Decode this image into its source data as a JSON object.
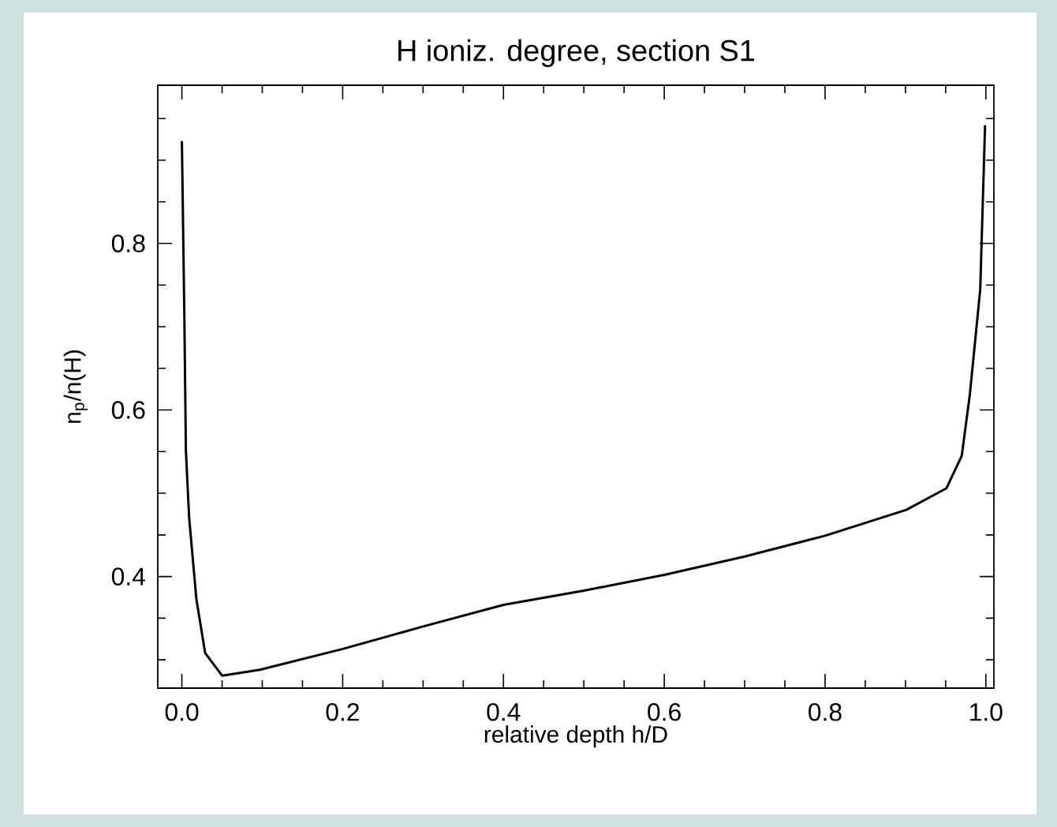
{
  "chart_data": {
    "type": "line",
    "title": "H ioniz. degree, section S1",
    "xlabel": "relative depth h/D",
    "ylabel": "n$_{p}$/n(H)",
    "x": [
      0.0,
      0.003,
      0.005,
      0.009,
      0.018,
      0.029,
      0.05,
      0.097,
      0.2,
      0.3,
      0.4,
      0.5,
      0.6,
      0.7,
      0.8,
      0.901,
      0.951,
      0.97,
      0.98,
      0.993,
      0.999
    ],
    "series": [
      {
        "color": "#000000",
        "values": [
          0.923,
          0.718,
          0.551,
          0.471,
          0.373,
          0.308,
          0.281,
          0.288,
          0.313,
          0.34,
          0.366,
          0.383,
          0.402,
          0.424,
          0.449,
          0.48,
          0.506,
          0.545,
          0.618,
          0.745,
          0.942
        ]
      }
    ],
    "xlim": [
      -0.03,
      1.01
    ],
    "ylim": [
      0.266,
      0.99
    ],
    "xticks": [
      {
        "value": 0,
        "label": "0.0"
      },
      {
        "value": 0.05,
        "label": null
      },
      {
        "value": 0.1,
        "label": null
      },
      {
        "value": 0.15,
        "label": null
      },
      {
        "value": 0.2,
        "label": "0.2"
      },
      {
        "value": 0.25,
        "label": null
      },
      {
        "value": 0.3,
        "label": null
      },
      {
        "value": 0.35,
        "label": null
      },
      {
        "value": 0.4,
        "label": "0.4"
      },
      {
        "value": 0.45,
        "label": null
      },
      {
        "value": 0.5,
        "label": null
      },
      {
        "value": 0.55,
        "label": null
      },
      {
        "value": 0.6,
        "label": "0.6"
      },
      {
        "value": 0.65,
        "label": null
      },
      {
        "value": 0.7,
        "label": null
      },
      {
        "value": 0.75,
        "label": null
      },
      {
        "value": 0.8,
        "label": "0.8"
      },
      {
        "value": 0.85,
        "label": null
      },
      {
        "value": 0.9,
        "label": null
      },
      {
        "value": 0.95,
        "label": null
      },
      {
        "value": 1,
        "label": "1.0"
      }
    ],
    "yticks": [
      {
        "value": 0.3,
        "label": null
      },
      {
        "value": 0.35,
        "label": null
      },
      {
        "value": 0.4,
        "label": "0.4"
      },
      {
        "value": 0.45,
        "label": null
      },
      {
        "value": 0.5,
        "label": null
      },
      {
        "value": 0.55,
        "label": null
      },
      {
        "value": 0.6,
        "label": "0.6"
      },
      {
        "value": 0.65,
        "label": null
      },
      {
        "value": 0.7,
        "label": null
      },
      {
        "value": 0.75,
        "label": null
      },
      {
        "value": 0.8,
        "label": "0.8"
      },
      {
        "value": 0.85,
        "label": null
      },
      {
        "value": 0.9,
        "label": null
      },
      {
        "value": 0.95,
        "label": null
      }
    ]
  }
}
